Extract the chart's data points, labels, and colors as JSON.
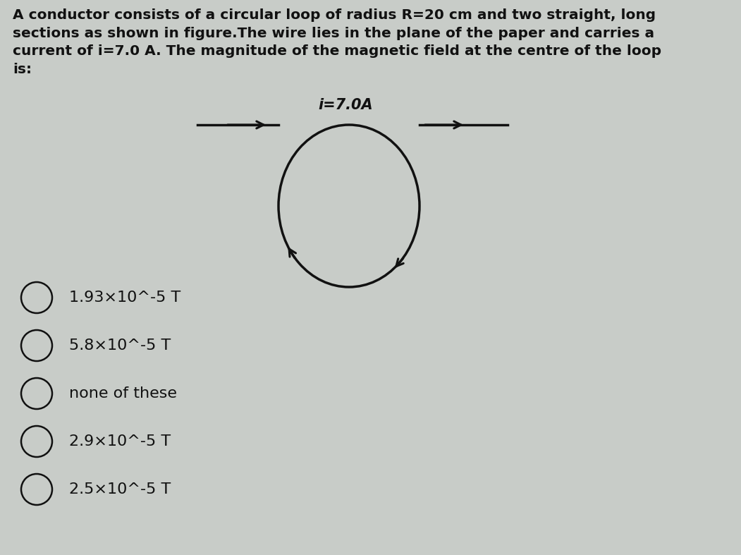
{
  "title_text": "A conductor consists of a circular loop of radius R=20 cm and two straight, long\nsections as shown in figure.The wire lies in the plane of the paper and carries a\ncurrent of i=7.0 A. The magnitude of the magnetic field at the centre of the loop\nis:",
  "current_label": "i=7.0A",
  "options": [
    "1.93×10^-5 T",
    "5.8×10^-5 T",
    "none of these",
    "2.9×10^-5 T",
    "2.5×10^-5 T"
  ],
  "bg_color": "#c8ccc8",
  "text_color": "#111111",
  "circle_color": "#111111",
  "fig_width": 10.51,
  "fig_height": 7.87,
  "dpi": 100,
  "title_fontsize": 14.5,
  "option_fontsize": 16,
  "current_label_fontsize": 15
}
